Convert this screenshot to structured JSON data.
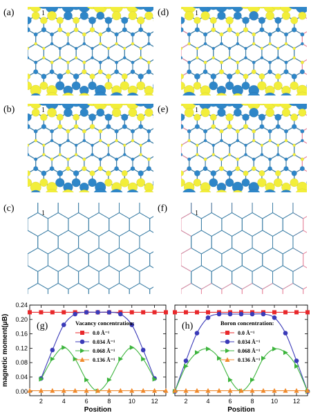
{
  "panels": [
    {
      "id": "a",
      "label": "(a)",
      "site_label": "1",
      "pink_edges": false,
      "style": "spin"
    },
    {
      "id": "b",
      "label": "(b)",
      "site_label": "1",
      "pink_edges": false,
      "style": "spin"
    },
    {
      "id": "c",
      "label": "(c)",
      "site_label": "1",
      "pink_edges": false,
      "style": "lattice"
    },
    {
      "id": "d",
      "label": "(d)",
      "site_label": "1",
      "pink_edges": true,
      "style": "spin"
    },
    {
      "id": "e",
      "label": "(e)",
      "site_label": "1",
      "pink_edges": true,
      "style": "spin"
    },
    {
      "id": "f",
      "label": "(f)",
      "site_label": "1",
      "pink_edges": true,
      "style": "lattice"
    }
  ],
  "colors": {
    "spin_up": "#f2ee3a",
    "spin_down": "#2e86c8",
    "bond": "#3d7fa6",
    "dopant": "#e88aa0"
  },
  "chart_data": [
    {
      "type": "line",
      "label": "(g)",
      "xlabel": "Position",
      "ylabel": "magnetic moment(μB)",
      "xlim": [
        1,
        13
      ],
      "ylim": [
        -0.012,
        0.24
      ],
      "xticks": [
        2,
        4,
        6,
        8,
        10,
        12
      ],
      "yticks": [
        "0.00",
        "0.04",
        "0.08",
        "0.12",
        "0.16",
        "0.20",
        "0.24"
      ],
      "legend_title": "Vacancy concentration:",
      "legend_position": "center",
      "series": [
        {
          "name": "0.0 Å⁻¹",
          "color": "#e8282b",
          "marker": "square",
          "x": [
            1,
            2,
            3,
            4,
            5,
            6,
            7,
            8,
            9,
            10,
            11,
            12,
            13
          ],
          "y": [
            0.22,
            0.22,
            0.22,
            0.22,
            0.22,
            0.22,
            0.22,
            0.22,
            0.22,
            0.22,
            0.22,
            0.22,
            0.22
          ]
        },
        {
          "name": "0.034 Å⁻¹",
          "color": "#3a3ab8",
          "marker": "circle",
          "x": [
            2,
            3,
            4,
            5,
            6,
            7,
            8,
            9,
            10,
            11,
            12
          ],
          "y": [
            0.036,
            0.115,
            0.185,
            0.215,
            0.22,
            0.22,
            0.22,
            0.215,
            0.185,
            0.115,
            0.036
          ]
        },
        {
          "name": "0.068 Å⁻¹",
          "color": "#3cb43c",
          "marker": "triangle-right",
          "x": [
            2,
            3,
            4,
            5,
            6,
            7,
            8,
            9,
            10,
            11,
            12
          ],
          "y": [
            0.034,
            0.09,
            0.122,
            0.09,
            0.032,
            0.001,
            0.032,
            0.09,
            0.122,
            0.09,
            0.034
          ]
        },
        {
          "name": "0.136 Å⁻¹",
          "color": "#f08a2c",
          "marker": "triangle-up",
          "x": [
            1,
            2,
            3,
            4,
            5,
            6,
            7,
            8,
            9,
            10,
            11,
            12,
            13
          ],
          "y": [
            0.002,
            0.002,
            0.002,
            0.002,
            0.002,
            0.002,
            0.002,
            0.002,
            0.002,
            0.002,
            0.002,
            0.002,
            0.002
          ]
        }
      ]
    },
    {
      "type": "line",
      "label": "(h)",
      "xlabel": "Position",
      "xlim": [
        1,
        13
      ],
      "ylim": [
        -0.012,
        0.24
      ],
      "xticks": [
        2,
        4,
        6,
        8,
        10,
        12
      ],
      "legend_title": "Boron concentration:",
      "legend_position": "center",
      "series": [
        {
          "name": "0.0 Å⁻¹",
          "color": "#e8282b",
          "marker": "square",
          "x": [
            1,
            2,
            3,
            4,
            5,
            6,
            7,
            8,
            9,
            10,
            11,
            12,
            13
          ],
          "y": [
            0.22,
            0.22,
            0.22,
            0.22,
            0.22,
            0.22,
            0.22,
            0.22,
            0.22,
            0.22,
            0.22,
            0.22,
            0.22
          ]
        },
        {
          "name": "0.034 Å⁻¹",
          "color": "#3a3ab8",
          "marker": "circle",
          "x": [
            1,
            2,
            3,
            4,
            5,
            6,
            7,
            8,
            9,
            10,
            11,
            12,
            13
          ],
          "y": [
            0.0,
            0.085,
            0.162,
            0.205,
            0.215,
            0.215,
            0.215,
            0.215,
            0.215,
            0.205,
            0.162,
            0.085,
            0.0
          ]
        },
        {
          "name": "0.068 Å⁻¹",
          "color": "#3cb43c",
          "marker": "triangle-right",
          "x": [
            1,
            2,
            3,
            4,
            5,
            6,
            7,
            8,
            9,
            10,
            11,
            12,
            13
          ],
          "y": [
            0.0,
            0.07,
            0.108,
            0.118,
            0.092,
            0.032,
            0.001,
            0.032,
            0.092,
            0.118,
            0.108,
            0.07,
            0.0
          ]
        },
        {
          "name": "0.136 Å⁻¹",
          "color": "#f08a2c",
          "marker": "triangle-up",
          "x": [
            1,
            2,
            3,
            4,
            5,
            6,
            7,
            8,
            9,
            10,
            11,
            12,
            13
          ],
          "y": [
            0.002,
            0.002,
            0.002,
            0.002,
            0.002,
            0.002,
            0.002,
            0.002,
            0.002,
            0.002,
            0.002,
            0.002,
            0.002
          ]
        }
      ]
    }
  ]
}
